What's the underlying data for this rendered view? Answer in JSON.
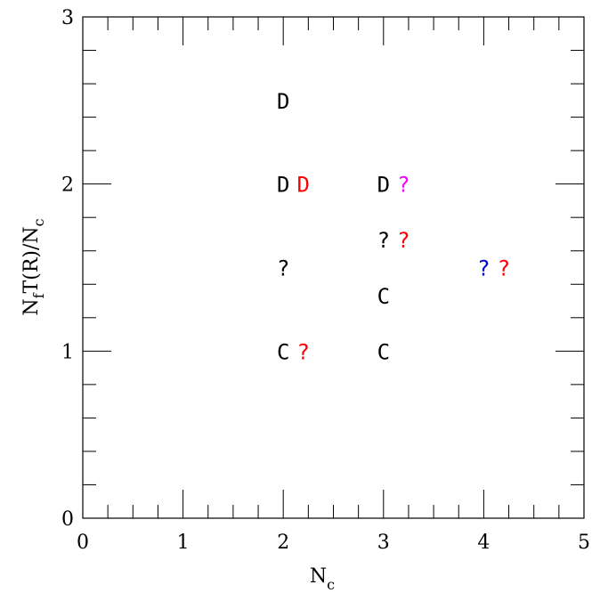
{
  "chart_data": {
    "type": "scatter",
    "xlabel_main": "N",
    "xlabel_sub": "c",
    "ylabel": "N_f T(R)/N_c",
    "xlim": [
      0,
      5
    ],
    "ylim": [
      0,
      3
    ],
    "x_major_ticks": [
      0,
      1,
      2,
      3,
      4,
      5
    ],
    "x_minor_step": 0.25,
    "y_major_ticks": [
      0,
      1,
      2,
      3
    ],
    "y_minor_step": 0.2,
    "grid": false,
    "x_tick_labels": [
      "0",
      "1",
      "2",
      "3",
      "4",
      "5"
    ],
    "y_tick_labels": [
      "0",
      "1",
      "2",
      "3"
    ],
    "points": [
      {
        "x": 2,
        "y": 2.5,
        "label": "D",
        "color": "#000000"
      },
      {
        "x": 2,
        "y": 2,
        "label": "D",
        "color": "#000000"
      },
      {
        "x": 2.2,
        "y": 2,
        "label": "D",
        "color": "#ff0000"
      },
      {
        "x": 2,
        "y": 1.5,
        "label": "?",
        "color": "#000000"
      },
      {
        "x": 2,
        "y": 1,
        "label": "C",
        "color": "#000000"
      },
      {
        "x": 2.2,
        "y": 1,
        "label": "?",
        "color": "#ff0000"
      },
      {
        "x": 3,
        "y": 2,
        "label": "D",
        "color": "#000000"
      },
      {
        "x": 3.2,
        "y": 2,
        "label": "?",
        "color": "#ff00ff"
      },
      {
        "x": 3,
        "y": 1.6667,
        "label": "?",
        "color": "#000000"
      },
      {
        "x": 3.2,
        "y": 1.6667,
        "label": "?",
        "color": "#ff0000"
      },
      {
        "x": 3,
        "y": 1.3333,
        "label": "C",
        "color": "#000000"
      },
      {
        "x": 3,
        "y": 1,
        "label": "C",
        "color": "#000000"
      },
      {
        "x": 4,
        "y": 1.5,
        "label": "?",
        "color": "#0000cc"
      },
      {
        "x": 4.2,
        "y": 1.5,
        "label": "?",
        "color": "#ff0000"
      }
    ]
  }
}
